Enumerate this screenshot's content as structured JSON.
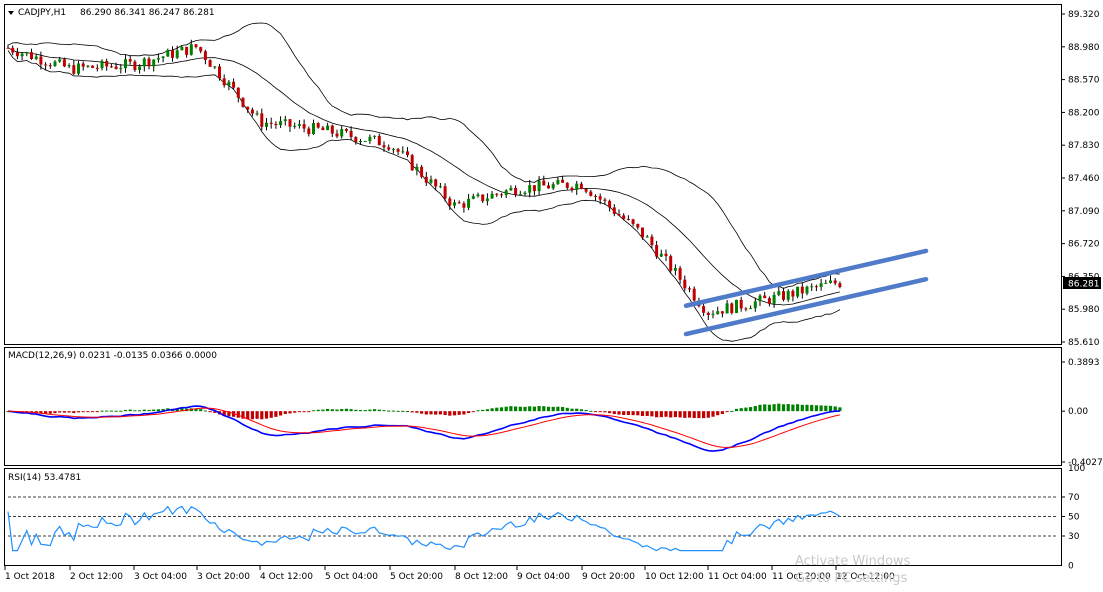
{
  "header": {
    "symbol": "CADJPY,H1",
    "ohlc": "86.290 86.341 86.247 86.281"
  },
  "panels": {
    "price": {
      "y_ticks": [
        "89.320",
        "88.980",
        "88.570",
        "88.200",
        "87.830",
        "87.460",
        "87.090",
        "86.720",
        "86.350",
        "85.980",
        "85.610"
      ],
      "current_price_label": "86.281"
    },
    "macd": {
      "label": "MACD(12,26,9) 0.0231 -0.0135 0.0366 0.0000",
      "y_ticks": [
        "0.3893",
        "0.00",
        "-0.4027"
      ]
    },
    "rsi": {
      "label": "RSI(14) 53.4781",
      "y_ticks": [
        "70",
        "50",
        "30"
      ],
      "extra_ticks": [
        "100",
        "0"
      ]
    }
  },
  "x_axis": {
    "ticks": [
      "1 Oct 2018",
      "2 Oct 12:00",
      "3 Oct 04:00",
      "3 Oct 20:00",
      "4 Oct 12:00",
      "5 Oct 04:00",
      "5 Oct 20:00",
      "8 Oct 12:00",
      "9 Oct 04:00",
      "9 Oct 20:00",
      "10 Oct 12:00",
      "11 Oct 04:00",
      "11 Oct 20:00",
      "12 Oct 12:00"
    ]
  },
  "watermark": {
    "line1": "Activate Windows",
    "line2": "Go to PC settings"
  },
  "colors": {
    "bull_candle": "#008000",
    "bear_candle": "#c00000",
    "bands": "#000000",
    "channel": "#4f7bc9",
    "macd_line": "#0000ff",
    "signal_line": "#ff0000",
    "rsi_line": "#1e90ff"
  },
  "chart_data": {
    "type": "candlestick-with-indicators",
    "symbol": "CADJPY",
    "timeframe": "H1",
    "price_range": [
      85.61,
      89.32
    ],
    "close_path": [
      {
        "x": "1 Oct 2018",
        "close": 88.95
      },
      {
        "x": "2 Oct 12:00",
        "close": 88.7
      },
      {
        "x": "3 Oct 04:00",
        "close": 88.75
      },
      {
        "x": "3 Oct 20:00",
        "close": 88.95
      },
      {
        "x": "4 Oct 12:00",
        "close": 88.1
      },
      {
        "x": "5 Oct 04:00",
        "close": 88.0
      },
      {
        "x": "5 Oct 20:00",
        "close": 87.85
      },
      {
        "x": "8 Oct 12:00",
        "close": 87.15
      },
      {
        "x": "9 Oct 04:00",
        "close": 87.35
      },
      {
        "x": "9 Oct 20:00",
        "close": 87.4
      },
      {
        "x": "10 Oct 12:00",
        "close": 86.8
      },
      {
        "x": "11 Oct 04:00",
        "close": 85.95
      },
      {
        "x": "11 Oct 20:00",
        "close": 86.1
      },
      {
        "x": "12 Oct 12:00",
        "close": 86.281
      }
    ],
    "channel_lines": [
      {
        "from": {
          "x": "11 Oct 04:00",
          "y": 86.02
        },
        "to": {
          "x": "12 Oct 12:00",
          "y": 86.64
        }
      },
      {
        "from": {
          "x": "11 Oct 04:00",
          "y": 85.7
        },
        "to": {
          "x": "12 Oct 12:00",
          "y": 86.32
        }
      }
    ],
    "macd": {
      "params": [
        12,
        26,
        9
      ],
      "values": [
        0.0231,
        -0.0135,
        0.0366,
        0.0
      ],
      "range": [
        -0.4027,
        0.3893
      ]
    },
    "rsi": {
      "period": 14,
      "value": 53.4781,
      "levels": [
        70,
        50,
        30
      ]
    }
  }
}
